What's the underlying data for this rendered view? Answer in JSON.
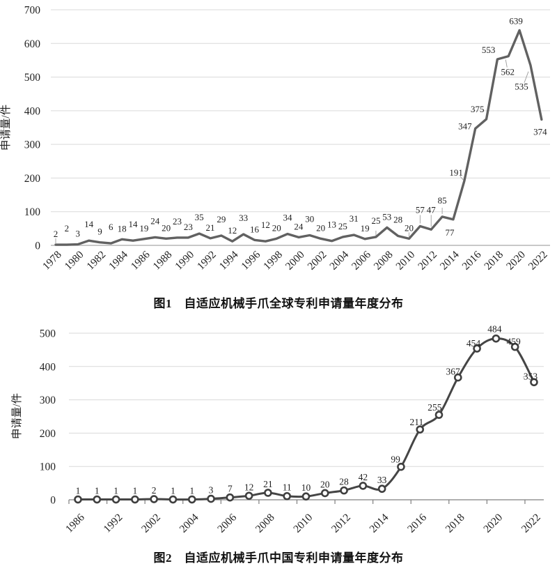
{
  "page": {
    "background": "#ffffff",
    "text_color": "#1f1f1f",
    "grid_color": "#d9d9d9"
  },
  "chart_data": [
    {
      "type": "line",
      "title": "图1　自适应机械手爪全球专利申请量年度分布",
      "ylabel": "申请量/件",
      "ylim": [
        0,
        700
      ],
      "ytick_step": 100,
      "ytick_labels": [
        "0",
        "100",
        "200",
        "300",
        "400",
        "500",
        "600",
        "700"
      ],
      "x_tick_labels": [
        "1978",
        "1980",
        "1982",
        "1984",
        "1986",
        "1988",
        "1990",
        "1992",
        "1994",
        "1996",
        "1998",
        "2000",
        "2002",
        "2004",
        "2006",
        "2008",
        "2010",
        "2012",
        "2014",
        "2016",
        "2018",
        "2020",
        "2022"
      ],
      "x_years_start": 1978,
      "x_years_end": 2022,
      "values": [
        2,
        2,
        3,
        14,
        9,
        6,
        18,
        14,
        19,
        24,
        20,
        23,
        23,
        35,
        21,
        29,
        12,
        33,
        16,
        12,
        20,
        34,
        24,
        30,
        20,
        13,
        25,
        31,
        19,
        25,
        53,
        28,
        20,
        57,
        47,
        85,
        77,
        191,
        347,
        375,
        553,
        562,
        639,
        535,
        374
      ],
      "line_color": "#616161",
      "marker": "none",
      "grid": "horizontal",
      "legend": "none"
    },
    {
      "type": "line",
      "title": "图2　自适应机械手爪中国专利申请量年度分布",
      "ylabel": "申请量/件",
      "ylim": [
        0,
        500
      ],
      "ytick_step": 100,
      "ytick_labels": [
        "0",
        "100",
        "200",
        "300",
        "400",
        "500"
      ],
      "x_tick_labels": [
        "1986",
        "1992",
        "2002",
        "2004",
        "2006",
        "2008",
        "2010",
        "2012",
        "2014",
        "2016",
        "2018",
        "2020",
        "2022"
      ],
      "x_tick_label_every": 2,
      "values": [
        1,
        1,
        1,
        1,
        2,
        1,
        1,
        3,
        7,
        12,
        21,
        11,
        10,
        20,
        28,
        42,
        33,
        99,
        211,
        255,
        367,
        454,
        484,
        459,
        353
      ],
      "line_color": "#454545",
      "marker": "open-circle",
      "marker_fill": "#ffffff",
      "marker_stroke": "#3f3f3f",
      "grid": "horizontal",
      "legend": "none"
    }
  ]
}
